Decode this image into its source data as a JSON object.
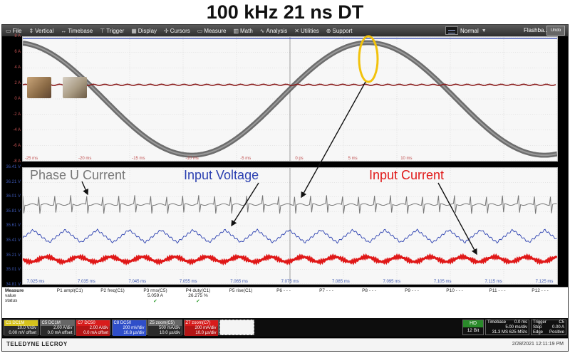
{
  "page_title": "100 kHz 21 ns DT",
  "menubar": {
    "items": [
      {
        "icon": "file-icon",
        "glyph": "▭",
        "label": "File"
      },
      {
        "icon": "vertical-icon",
        "glyph": "⇕",
        "label": "Vertical"
      },
      {
        "icon": "timebase-icon",
        "glyph": "↔",
        "label": "Timebase"
      },
      {
        "icon": "trigger-icon",
        "glyph": "⊤",
        "label": "Trigger"
      },
      {
        "icon": "display-icon",
        "glyph": "▦",
        "label": "Display"
      },
      {
        "icon": "cursors-icon",
        "glyph": "✢",
        "label": "Cursors"
      },
      {
        "icon": "measure-icon",
        "glyph": "▭",
        "label": "Measure"
      },
      {
        "icon": "math-icon",
        "glyph": "▥",
        "label": "Math"
      },
      {
        "icon": "analysis-icon",
        "glyph": "∿",
        "label": "Analysis"
      },
      {
        "icon": "utilities-icon",
        "glyph": "✕",
        "label": "Utilities"
      },
      {
        "icon": "support-icon",
        "glyph": "⊕",
        "label": "Support"
      }
    ],
    "mode": "Normal",
    "flashback": "Flashba...",
    "undo": "Undo"
  },
  "top_grid": {
    "y_labels": [
      "8 A",
      "6 A",
      "4 A",
      "2 A",
      "0 A",
      "-2 A",
      "-4 A",
      "-6 A",
      "-8 A"
    ],
    "x_labels": [
      "-25 ms",
      "-20 ms",
      "-15 ms",
      "-10 ms",
      "-5 ms",
      "0 ps",
      "5 ms",
      "10 ms"
    ]
  },
  "bottom_grid": {
    "y_labels": [
      "36.41 V",
      "36.21 V",
      "36.01 V",
      "35.81 V",
      "35.61 V",
      "35.41 V",
      "35.21 V",
      "35.01 V",
      "34.81 V"
    ],
    "x_labels": [
      "7.025 ms",
      "7.035 ms",
      "7.045 ms",
      "7.055 ms",
      "7.065 ms",
      "7.075 ms",
      "7.085 ms",
      "7.095 ms",
      "7.105 ms",
      "7.115 ms",
      "7.125 ms"
    ]
  },
  "annotations": {
    "phase_u": "Phase U Current",
    "input_voltage": "Input Voltage",
    "input_current": "Input Current"
  },
  "colors": {
    "phase_u": "#777777",
    "input_voltage": "#2a3fb0",
    "input_current": "#e01818",
    "oval": "#f2c20c"
  },
  "measure": {
    "row_labels": [
      "Measure",
      "value",
      "status"
    ],
    "params": [
      "P1 ampl(C1)",
      "P2 freq(C1)",
      "P3 rms(C5)",
      "P4 duty(C1)",
      "P5 rise(C1)",
      "P6 - - -",
      "P7 - - -",
      "P8 - - -",
      "P9 - - -",
      "P10 - - -",
      "P11 - - -",
      "P12 - - -"
    ],
    "values": [
      "",
      "",
      "5.059 A",
      "26.275 %",
      "",
      "",
      "",
      "",
      "",
      "",
      "",
      ""
    ],
    "status": [
      "",
      "",
      "✔",
      "✔",
      "",
      "",
      "",
      "",
      "",
      "",
      "",
      ""
    ]
  },
  "channels": [
    {
      "head": "C1 DC1M",
      "color": "#d6c21d",
      "line1": "10.0 V/div",
      "line2": "0.00 mV offset"
    },
    {
      "head": "C5 DC1M",
      "color": "#666666",
      "line1": "2.00 A/div",
      "line2": "0.0 mA offset"
    },
    {
      "head": "C7 DC50",
      "color": "#d81c1c",
      "line1": "2.00 A/div",
      "line2": "0.0 mA offset"
    },
    {
      "head": "C8 DC50",
      "color": "#2f4ec9",
      "line1": "200 mV/div",
      "line2": "10.8 µs/div"
    },
    {
      "head": "Z5 zoom(C5)",
      "color": "#666666",
      "line1": "500 mA/div",
      "line2": "10.0 µs/div"
    },
    {
      "head": "Z7 zoom(C7)",
      "color": "#d81c1c",
      "line1": "200 mA/div",
      "line2": "10.0 µs/div"
    }
  ],
  "acq": {
    "hd": "HD",
    "bits": "12 Bit",
    "timebase_label": "Timebase",
    "timebase_delay": "0.0 ms",
    "timebase_div": "5.00 ms/div",
    "sample": "31.3 MS   625 MS/s",
    "trigger_label": "Trigger",
    "trigger_ch": "C5",
    "trigger_mode": "Stop",
    "trigger_type": "Edge",
    "trigger_level": "0.00 A",
    "trigger_slope": "Positive"
  },
  "brand": "TELEDYNE LECROY",
  "timestamp": "2/28/2021 12:11:19 PM"
}
